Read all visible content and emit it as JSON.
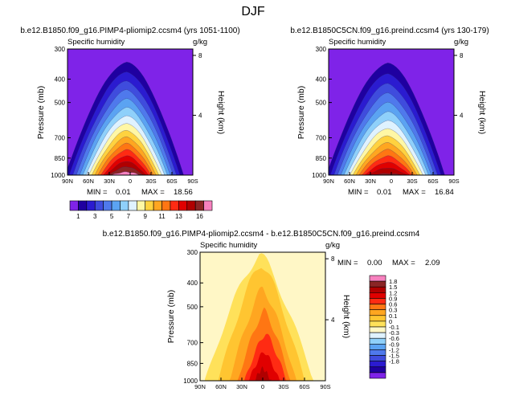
{
  "figure_title": "DJF",
  "colors": {
    "abs_levels": [
      "#7f23e8",
      "#1f00a0",
      "#2b1bd0",
      "#3f4cdd",
      "#4f79ec",
      "#5ba3f2",
      "#8fd0fa",
      "#dff2ff",
      "#fff7a5",
      "#ffd23f",
      "#ffa620",
      "#ff7613",
      "#ff2b13",
      "#e00000",
      "#b00000",
      "#8a2525",
      "#f781bf"
    ],
    "diff_levels": [
      "#7f23e8",
      "#1f00a0",
      "#2b1bd0",
      "#3f4cdd",
      "#4f79ec",
      "#5ba3f2",
      "#8fd0fa",
      "#dff2ff",
      "#fff7c6",
      "#ffe15a",
      "#ffc531",
      "#ffa620",
      "#ff7613",
      "#ff2b13",
      "#e00000",
      "#b00000",
      "#8a2525",
      "#f781bf"
    ]
  },
  "chart_data": [
    {
      "type": "heatmap",
      "title": "b.e12.B1850.f09_g16.PIMP4-pliomip2.ccsm4 (yrs 1051-1100)",
      "field": "Specific humidity",
      "units": "g/kg",
      "xlabel": "",
      "ylabel": "Pressure (mb)",
      "ylabel_right": "Height (km)",
      "x_ticks": [
        "90N",
        "60N",
        "30N",
        "0",
        "30S",
        "60S",
        "90S"
      ],
      "y_ticks": [
        1000,
        850,
        700,
        500,
        400,
        300
      ],
      "right_ticks": [
        4,
        8
      ],
      "ylim": [
        1000,
        300
      ],
      "xlim": [
        90,
        -90
      ],
      "stats": {
        "min_label": "MIN =",
        "min": "0.01",
        "max_label": "MAX =",
        "max": "18.56"
      },
      "peak_value": 18.56,
      "peak_latitude": 5
    },
    {
      "type": "heatmap",
      "title": "b.e12.B1850C5CN.f09_g16.preind.ccsm4 (yrs 130-179)",
      "field": "Specific humidity",
      "units": "g/kg",
      "xlabel": "",
      "ylabel": "Pressure (mb)",
      "ylabel_right": "Height (km)",
      "x_ticks": [
        "90N",
        "60N",
        "30N",
        "0",
        "30S",
        "60S",
        "90S"
      ],
      "y_ticks": [
        1000,
        850,
        700,
        500,
        400,
        300
      ],
      "right_ticks": [
        4,
        8
      ],
      "ylim": [
        1000,
        300
      ],
      "xlim": [
        90,
        -90
      ],
      "stats": {
        "min_label": "MIN =",
        "min": "0.01",
        "max_label": "MAX =",
        "max": "16.84"
      },
      "peak_value": 16.84,
      "peak_latitude": 5
    },
    {
      "type": "heatmap",
      "title": "b.e12.B1850.f09_g16.PIMP4-pliomip2.ccsm4 - b.e12.B1850C5CN.f09_g16.preind.ccsm4",
      "field": "Specific humidity",
      "units": "g/kg",
      "xlabel": "",
      "ylabel": "Pressure (mb)",
      "ylabel_right": "Height (km)",
      "x_ticks": [
        "90N",
        "60N",
        "30N",
        "0",
        "30S",
        "60S",
        "90S"
      ],
      "y_ticks": [
        1000,
        850,
        700,
        500,
        400,
        300
      ],
      "right_ticks": [
        4,
        8
      ],
      "ylim": [
        1000,
        300
      ],
      "xlim": [
        90,
        -90
      ],
      "stats": {
        "min_label": "MIN =",
        "min": "0.00",
        "max_label": "MAX =",
        "max": "2.09"
      },
      "peak_value": 2.09
    }
  ],
  "abs_colorbar": {
    "labels": [
      "1",
      "3",
      "5",
      "7",
      "9",
      "11",
      "13",
      "16"
    ]
  },
  "diff_colorbar": {
    "labels": [
      "1.8",
      "1.5",
      "1.2",
      "0.9",
      "0.6",
      "0.3",
      "0.1",
      "0",
      "-0.1",
      "-0.3",
      "-0.6",
      "-0.9",
      "-1.2",
      "-1.5",
      "-1.8"
    ]
  }
}
